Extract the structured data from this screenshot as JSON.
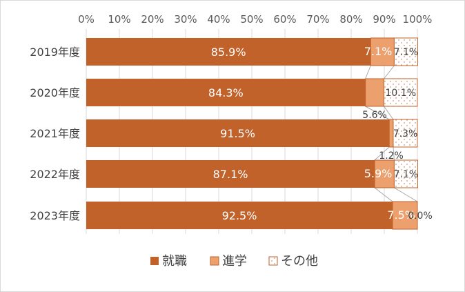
{
  "chart_data": {
    "type": "bar",
    "orientation": "horizontal",
    "stacked": "percent",
    "title": "",
    "xlabel": "",
    "ylabel": "",
    "xlim": [
      0,
      100
    ],
    "x_ticks": [
      "0%",
      "10%",
      "20%",
      "30%",
      "40%",
      "50%",
      "60%",
      "70%",
      "80%",
      "90%",
      "100%"
    ],
    "categories": [
      "2019年度",
      "2020年度",
      "2021年度",
      "2022年度",
      "2023年度"
    ],
    "series": [
      {
        "name": "就職",
        "values": [
          85.9,
          84.3,
          91.5,
          87.1,
          92.5
        ],
        "labels": [
          "85.9%",
          "84.3%",
          "91.5%",
          "87.1%",
          "92.5%"
        ],
        "color": "#c0622a"
      },
      {
        "name": "進学",
        "values": [
          7.1,
          5.6,
          1.2,
          5.9,
          7.5
        ],
        "labels": [
          "7.1%",
          "5.6%",
          "1.2%",
          "5.9%",
          "7.5%"
        ],
        "color": "#eba06e"
      },
      {
        "name": "その他",
        "values": [
          7.1,
          10.1,
          7.3,
          7.1,
          0.0
        ],
        "labels": [
          "7.1%",
          "10.1%",
          "7.3%",
          "7.1%",
          "0.0%"
        ],
        "color": "#ffffff"
      }
    ],
    "legend": "bottom",
    "grid": true,
    "series_lines": true
  }
}
